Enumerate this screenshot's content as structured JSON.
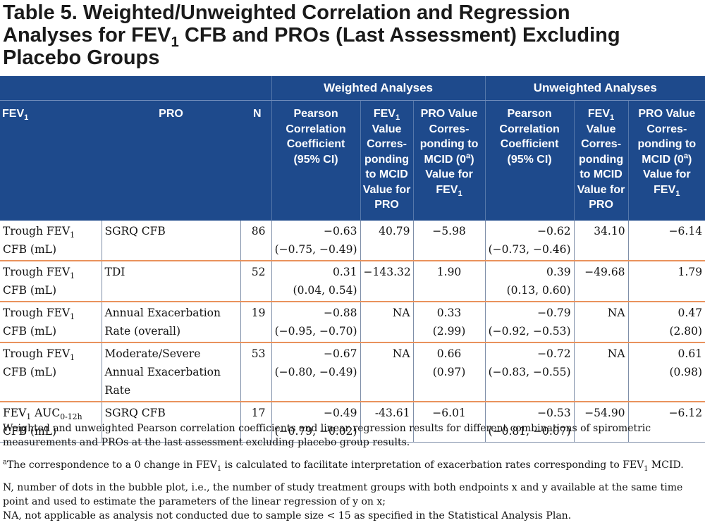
{
  "title": {
    "line1": "Table 5. Weighted/Unweighted Correlation and Regression",
    "line2_pre": "Analyses for FEV",
    "line2_sub": "1",
    "line2_post": " CFB and PROs (Last Assessment) Excluding",
    "line3": "Placebo Groups"
  },
  "header": {
    "group_weighted": "Weighted Analyses",
    "group_unweighted": "Unweighted Analyses",
    "col_fev_pre": "FEV",
    "col_fev_sub": "1",
    "col_pro": "PRO",
    "col_n": "N",
    "col_pearson": "Pearson Correlation Coefficient (95% CI)",
    "col_fev_value_pre": "FEV",
    "col_fev_value_sub": "1",
    "col_fev_value_post": " Value Corres-ponding to MCID Value for PRO",
    "col_pro_value_pre": "PRO Value Corres-ponding to MCID (0",
    "col_pro_value_sup": "a",
    "col_pro_value_mid": ") Value for FEV",
    "col_pro_value_sub": "1"
  },
  "rows": [
    {
      "fev_a": "Trough FEV",
      "fev_sub": "1",
      "fev_b": "",
      "fev_line2": "CFB (mL)",
      "pro": "SGRQ CFB",
      "n": "86",
      "w_r": "−0.63",
      "w_ci": "(−0.75, −0.49)",
      "w_fev": "40.79",
      "w_pro": "−5.98",
      "w_pro2": "",
      "u_r": "−0.62",
      "u_ci": "(−0.73, −0.46)",
      "u_fev": "34.10",
      "u_pro": "−6.14",
      "u_pro2": ""
    },
    {
      "fev_a": "Trough FEV",
      "fev_sub": "1",
      "fev_b": "",
      "fev_line2": "CFB (mL)",
      "pro": "TDI",
      "n": "52",
      "w_r": "0.31",
      "w_ci": "(0.04, 0.54)",
      "w_fev": "−143.32",
      "w_pro": "1.90",
      "w_pro2": "",
      "u_r": "0.39",
      "u_ci": "(0.13, 0.60)",
      "u_fev": "−49.68",
      "u_pro": "1.79",
      "u_pro2": ""
    },
    {
      "fev_a": "Trough FEV",
      "fev_sub": "1",
      "fev_b": "",
      "fev_line2": "CFB (mL)",
      "pro": "Annual Exacerbation Rate (overall)",
      "n": "19",
      "w_r": "−0.88",
      "w_ci": "(−0.95, −0.70)",
      "w_fev": "NA",
      "w_pro": "0.33",
      "w_pro2": "(2.99)",
      "u_r": "−0.79",
      "u_ci": "(−0.92, −0.53)",
      "u_fev": "NA",
      "u_pro": "0.47",
      "u_pro2": "(2.80)"
    },
    {
      "fev_a": "Trough FEV",
      "fev_sub": "1",
      "fev_b": "",
      "fev_line2": "CFB (mL)",
      "pro": "Moderate/Severe Annual Exacerbation Rate",
      "n": "53",
      "w_r": "−0.67",
      "w_ci": "(−0.80, −0.49)",
      "w_fev": "NA",
      "w_pro": "0.66",
      "w_pro2": "(0.97)",
      "u_r": "−0.72",
      "u_ci": "(−0.83, −0.55)",
      "u_fev": "NA",
      "u_pro": "0.61",
      "u_pro2": "(0.98)"
    },
    {
      "fev_a": "FEV",
      "fev_sub": "1",
      "fev_b": " AUC",
      "fev_sub2": "0-12h",
      "fev_line2": "CFB (mL)",
      "pro": "SGRQ CFB",
      "n": "17",
      "w_r": "−0.49",
      "w_ci": "(−0.79, −0.02)",
      "w_fev": "-43.61",
      "w_pro": "−6.01",
      "w_pro2": "",
      "u_r": "−0.53",
      "u_ci": "(−0.81, −0.07)",
      "u_fev": "−54.90",
      "u_pro": "−6.12",
      "u_pro2": ""
    }
  ],
  "footnotes": {
    "caption": "Weighted and unweighted Pearson correlation coefficients and linear regression results for different combinations of spirometric measurements and PROs at the last assessment excluding placebo group results.",
    "fn_a_sup": "a",
    "fn_a_pre": "The correspondence to a 0 change in FEV",
    "fn_a_sub": "1",
    "fn_a_mid": " is calculated to facilitate interpretation of exacerbation rates corresponding to FEV",
    "fn_a_sub2": "1",
    "fn_a_post": " MCID.",
    "fn_n": "N, number of dots in the bubble plot, i.e., the number of study treatment groups with both endpoints x and y available at the same time point and used to estimate the parameters of the linear regression of y on x;",
    "fn_na": "NA, not applicable as analysis not conducted due to sample size < 15 as specified in the Statistical Analysis Plan."
  }
}
